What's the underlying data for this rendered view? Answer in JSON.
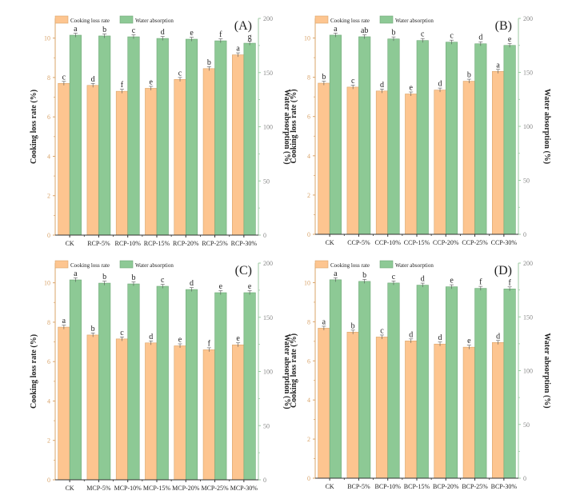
{
  "colors": {
    "cooking_loss": "#FDC590",
    "cooking_loss_edge": "#D9A46A",
    "water_absorption": "#8DC995",
    "water_absorption_edge": "#6FA877",
    "left_axis": "#D9A46A",
    "right_axis": "#9CC9A2",
    "text": "#222222"
  },
  "chart_data": [
    {
      "type": "bar",
      "panel_label": "(A)",
      "categories": [
        "CK",
        "RCP-5%",
        "RCP-10%",
        "RCP-15%",
        "RCP-20%",
        "RCP-25%",
        "RCP-30%"
      ],
      "ylabel": "Cooking loss rate (%)",
      "ylabel_right": "Water absorption (%)",
      "ylim": [
        0,
        11
      ],
      "ylim_right": [
        0,
        200
      ],
      "yticks": [
        "0",
        "2",
        "4",
        "6",
        "8",
        "10"
      ],
      "yticks_right": [
        "0",
        "50",
        "100",
        "150",
        "200"
      ],
      "legend": [
        "Cooking loss rate",
        "Water absorption"
      ],
      "legend_position": "top-left",
      "series": [
        {
          "name": "Cooking loss rate",
          "axis": "left",
          "values": [
            7.7,
            7.6,
            7.3,
            7.45,
            7.9,
            8.45,
            9.15
          ],
          "letters": [
            "c",
            "d",
            "f",
            "e",
            "c",
            "b",
            "a"
          ]
        },
        {
          "name": "Water absorption",
          "axis": "right",
          "values": [
            184.5,
            183.8,
            183.0,
            181.5,
            180.8,
            179.3,
            177.1
          ],
          "letters": [
            "a",
            "b",
            "c",
            "d",
            "e",
            "f",
            "g"
          ]
        }
      ]
    },
    {
      "type": "bar",
      "panel_label": "(B)",
      "categories": [
        "CK",
        "CCP-5%",
        "CCP-10%",
        "CCP-15%",
        "CCP-20%",
        "CCP-25%",
        "CCP-30%"
      ],
      "ylabel": "Cooking loss rate (%)",
      "ylabel_right": "Water absorption (%)",
      "ylim": [
        0,
        11
      ],
      "ylim_right": [
        0,
        200
      ],
      "yticks": [
        "0",
        "2",
        "4",
        "6",
        "8",
        "10"
      ],
      "yticks_right": [
        "0",
        "50",
        "100",
        "150",
        "200"
      ],
      "legend": [
        "Cooking loss rate",
        "Water absorption"
      ],
      "legend_position": "top-left",
      "series": [
        {
          "name": "Cooking loss rate",
          "axis": "left",
          "values": [
            7.7,
            7.5,
            7.3,
            7.15,
            7.35,
            7.8,
            8.3
          ],
          "letters": [
            "b",
            "c",
            "d",
            "e",
            "d",
            "b",
            "a"
          ]
        },
        {
          "name": "Water absorption",
          "axis": "right",
          "values": [
            184.5,
            183.0,
            181.0,
            179.5,
            178.0,
            176.5,
            175.0
          ],
          "letters": [
            "a",
            "ab",
            "b",
            "c",
            "c",
            "d",
            "e"
          ]
        }
      ]
    },
    {
      "type": "bar",
      "panel_label": "(C)",
      "categories": [
        "CK",
        "MCP-5%",
        "MCP-10%",
        "MCP-15%",
        "MCP-20%",
        "MCP-25%",
        "MCP-30%"
      ],
      "ylabel": "Cooking loss rate (%)",
      "ylabel_right": "Water absorption (%)",
      "ylim": [
        0,
        11
      ],
      "ylim_right": [
        0,
        200
      ],
      "yticks": [
        "0",
        "2",
        "4",
        "6",
        "8",
        "10"
      ],
      "yticks_right": [
        "0",
        "50",
        "100",
        "150",
        "200"
      ],
      "legend": [
        "Cooking loss rate",
        "Water absorption"
      ],
      "legend_position": "top-left",
      "series": [
        {
          "name": "Cooking loss rate",
          "axis": "left",
          "values": [
            7.75,
            7.35,
            7.15,
            6.95,
            6.8,
            6.6,
            6.85
          ],
          "letters": [
            "a",
            "b",
            "c",
            "d",
            "e",
            "f",
            "e"
          ]
        },
        {
          "name": "Water absorption",
          "axis": "right",
          "values": [
            184.5,
            181.5,
            180.8,
            178.6,
            175.6,
            172.7,
            172.7
          ],
          "letters": [
            "a",
            "b",
            "b",
            "c",
            "d",
            "e",
            "e"
          ]
        }
      ]
    },
    {
      "type": "bar",
      "panel_label": "(D)",
      "categories": [
        "CK",
        "BCP-5%",
        "BCP-10%",
        "BCP-15%",
        "BCP-20%",
        "BCP-25%",
        "BCP-30%"
      ],
      "ylabel": "Cooking loss rate (%)",
      "ylabel_right": "Water absorption (%)",
      "ylim": [
        0,
        11
      ],
      "ylim_right": [
        0,
        200
      ],
      "yticks": [
        "0",
        "2",
        "4",
        "6",
        "8",
        "10"
      ],
      "yticks_right": [
        "0",
        "50",
        "100",
        "150",
        "200"
      ],
      "legend": [
        "Cooking loss rate",
        "Water absorption"
      ],
      "legend_position": "top-left",
      "series": [
        {
          "name": "Cooking loss rate",
          "axis": "left",
          "values": [
            7.67,
            7.47,
            7.22,
            7.02,
            6.86,
            6.7,
            6.94
          ],
          "letters": [
            "a",
            "b",
            "c",
            "d",
            "d",
            "e",
            "d"
          ]
        },
        {
          "name": "Water absorption",
          "axis": "right",
          "values": [
            184.5,
            183.0,
            181.5,
            179.5,
            178.0,
            176.5,
            176.0
          ],
          "letters": [
            "a",
            "b",
            "c",
            "d",
            "e",
            "f",
            "f"
          ]
        }
      ]
    }
  ]
}
